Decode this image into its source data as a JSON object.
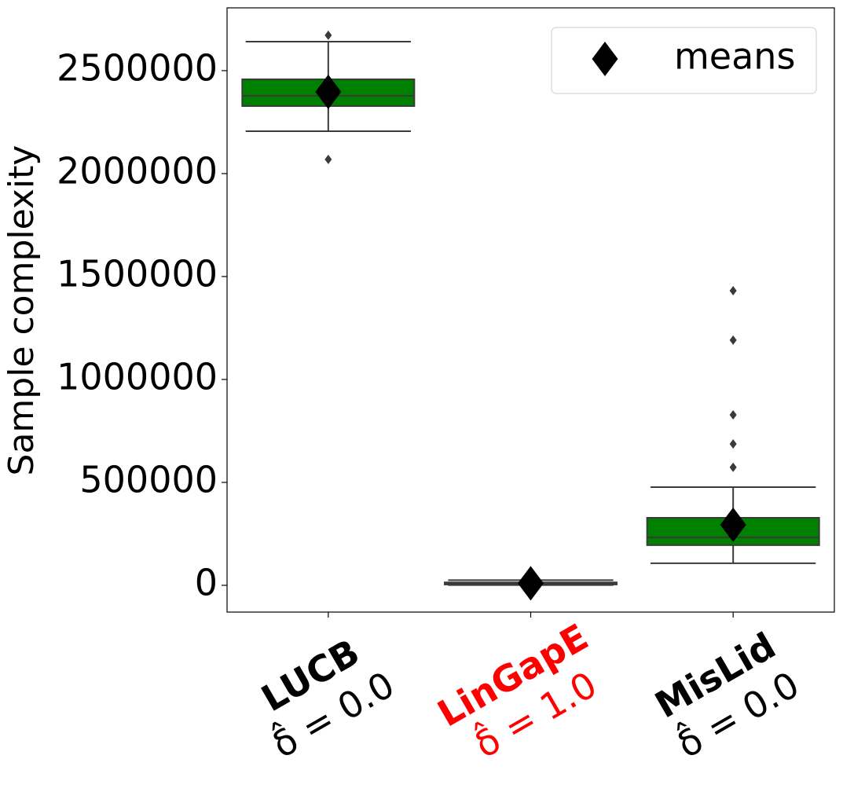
{
  "chart_data": {
    "type": "box",
    "ylabel": "Sample complexity",
    "categories": [
      "LUCB",
      "LinGapE",
      "MisLid"
    ],
    "category_sublabels": [
      "δ̂ = 0.0",
      "δ̂ = 1.0",
      "δ̂ = 0.0"
    ],
    "category_colors": [
      "#000000",
      "#ff0000",
      "#000000"
    ],
    "boxes": [
      {
        "whislo": 2206000,
        "q1": 2328000,
        "med": 2378000,
        "q3": 2458000,
        "whishi": 2641000,
        "fliers": [
          2069000,
          2672000
        ],
        "color": "#008000"
      },
      {
        "whislo": 1000,
        "q1": 4000,
        "med": 8000,
        "q3": 14000,
        "whishi": 25000,
        "fliers": [],
        "color": "#008000"
      },
      {
        "whislo": 107000,
        "q1": 195000,
        "med": 233000,
        "q3": 328000,
        "whishi": 477000,
        "fliers": [
          573000,
          687000,
          828000,
          1191000,
          1431000
        ],
        "color": "#008000"
      }
    ],
    "series": [
      {
        "name": "means",
        "color": "#000000",
        "values": [
          2397000,
          10000,
          294000
        ]
      }
    ],
    "ylim": [
      -130000,
      2805000
    ],
    "yticks": [
      0,
      500000,
      1000000,
      1500000,
      2000000,
      2500000
    ],
    "legend": "upper right"
  }
}
